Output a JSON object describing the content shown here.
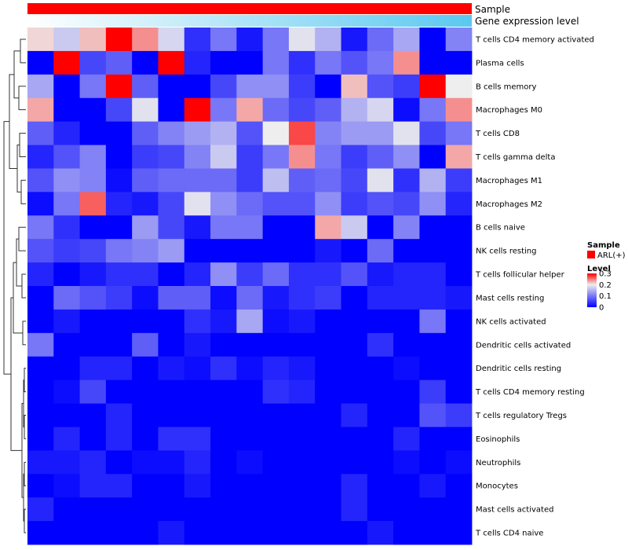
{
  "chart_data": {
    "type": "heatmap",
    "rows": [
      "T cells CD4 memory activated",
      "Plasma cells",
      "B cells memory",
      "Macrophages M0",
      "T cells CD8",
      "T cells gamma delta",
      "Macrophages M1",
      "Macrophages M2",
      "B cells naive",
      "NK cells resting",
      "T cells follicular helper",
      "Mast cells resting",
      "NK cells activated",
      "Dendritic cells activated",
      "Dendritic cells resting",
      "T cells CD4 memory resting",
      "T cells regulatory  Tregs",
      "Eosinophils",
      "Neutrophils",
      "Monocytes",
      "Mast cells activated",
      "T cells CD4 naive"
    ],
    "values": [
      [
        0.21,
        0.17,
        0.22,
        0.3,
        0.24,
        0.18,
        0.04,
        0.1,
        0.02,
        0.1,
        0.19,
        0.15,
        0.02,
        0.09,
        0.14,
        0.0,
        0.11
      ],
      [
        0.0,
        0.3,
        0.06,
        0.08,
        0.0,
        0.3,
        0.03,
        0.0,
        0.0,
        0.1,
        0.04,
        0.1,
        0.07,
        0.1,
        0.24,
        0.0,
        0.0
      ],
      [
        0.14,
        0.0,
        0.1,
        0.3,
        0.08,
        0.0,
        0.0,
        0.06,
        0.12,
        0.12,
        0.05,
        0.0,
        0.22,
        0.07,
        0.05,
        0.3,
        0.2
      ],
      [
        0.23,
        0.0,
        0.0,
        0.06,
        0.19,
        0.0,
        0.3,
        0.1,
        0.23,
        0.09,
        0.06,
        0.08,
        0.15,
        0.18,
        0.01,
        0.1,
        0.24
      ],
      [
        0.08,
        0.03,
        0.0,
        0.0,
        0.08,
        0.11,
        0.13,
        0.15,
        0.07,
        0.2,
        0.27,
        0.11,
        0.13,
        0.13,
        0.19,
        0.06,
        0.1
      ],
      [
        0.03,
        0.07,
        0.11,
        0.0,
        0.05,
        0.06,
        0.11,
        0.17,
        0.05,
        0.1,
        0.24,
        0.1,
        0.05,
        0.08,
        0.12,
        0.0,
        0.23
      ],
      [
        0.07,
        0.12,
        0.11,
        0.01,
        0.08,
        0.09,
        0.09,
        0.09,
        0.05,
        0.16,
        0.08,
        0.09,
        0.06,
        0.19,
        0.04,
        0.15,
        0.05
      ],
      [
        0.01,
        0.1,
        0.26,
        0.03,
        0.02,
        0.06,
        0.19,
        0.12,
        0.09,
        0.07,
        0.07,
        0.12,
        0.05,
        0.07,
        0.06,
        0.12,
        0.03
      ],
      [
        0.1,
        0.04,
        0.0,
        0.0,
        0.13,
        0.06,
        0.02,
        0.1,
        0.1,
        0.0,
        0.0,
        0.23,
        0.17,
        0.0,
        0.11,
        0.0,
        0.0
      ],
      [
        0.07,
        0.05,
        0.06,
        0.1,
        0.11,
        0.13,
        0.0,
        0.0,
        0.0,
        0.0,
        0.0,
        0.02,
        0.0,
        0.09,
        0.0,
        0.0,
        0.0
      ],
      [
        0.03,
        0.0,
        0.02,
        0.04,
        0.04,
        0.0,
        0.03,
        0.12,
        0.05,
        0.09,
        0.04,
        0.04,
        0.07,
        0.02,
        0.03,
        0.03,
        0.0
      ],
      [
        0.0,
        0.09,
        0.07,
        0.05,
        0.01,
        0.08,
        0.08,
        0.01,
        0.09,
        0.02,
        0.04,
        0.05,
        0.0,
        0.03,
        0.03,
        0.03,
        0.02
      ],
      [
        0.0,
        0.02,
        0.0,
        0.0,
        0.0,
        0.0,
        0.04,
        0.02,
        0.14,
        0.01,
        0.02,
        0.0,
        0.0,
        0.0,
        0.0,
        0.1,
        0.0
      ],
      [
        0.1,
        0.0,
        0.0,
        0.0,
        0.08,
        0.0,
        0.02,
        0.0,
        0.0,
        0.0,
        0.0,
        0.0,
        0.0,
        0.04,
        0.0,
        0.0,
        0.0
      ],
      [
        0.0,
        0.0,
        0.03,
        0.03,
        0.0,
        0.02,
        0.01,
        0.04,
        0.01,
        0.03,
        0.02,
        0.0,
        0.0,
        0.0,
        0.01,
        0.0,
        0.0
      ],
      [
        0.0,
        0.01,
        0.06,
        0.0,
        0.0,
        0.0,
        0.0,
        0.0,
        0.0,
        0.04,
        0.03,
        0.0,
        0.0,
        0.0,
        0.0,
        0.05,
        0.0
      ],
      [
        0.0,
        0.0,
        0.0,
        0.03,
        0.0,
        0.0,
        0.0,
        0.0,
        0.0,
        0.0,
        0.0,
        0.0,
        0.03,
        0.0,
        0.0,
        0.07,
        0.05
      ],
      [
        0.0,
        0.03,
        0.0,
        0.03,
        0.0,
        0.04,
        0.04,
        0.0,
        0.0,
        0.0,
        0.0,
        0.0,
        0.0,
        0.0,
        0.03,
        0.0,
        0.0
      ],
      [
        0.02,
        0.02,
        0.03,
        0.0,
        0.01,
        0.01,
        0.03,
        0.0,
        0.01,
        0.0,
        0.0,
        0.0,
        0.0,
        0.0,
        0.01,
        0.0,
        0.01
      ],
      [
        0.0,
        0.01,
        0.03,
        0.03,
        0.0,
        0.0,
        0.02,
        0.0,
        0.0,
        0.0,
        0.0,
        0.0,
        0.03,
        0.0,
        0.0,
        0.02,
        0.0
      ],
      [
        0.03,
        0.0,
        0.0,
        0.0,
        0.0,
        0.0,
        0.0,
        0.0,
        0.0,
        0.0,
        0.0,
        0.0,
        0.03,
        0.0,
        0.0,
        0.0,
        0.0
      ],
      [
        0.0,
        0.0,
        0.0,
        0.0,
        0.0,
        0.02,
        0.0,
        0.0,
        0.0,
        0.0,
        0.0,
        0.0,
        0.0,
        0.02,
        0.0,
        0.0,
        0.0
      ]
    ],
    "color_scale": {
      "range": [
        0,
        0.3
      ],
      "low": "#0000ff",
      "mid": "#eeeeee",
      "mid_value": 0.2,
      "high": "#ff0000",
      "ticks": [
        "0.3",
        "0.2",
        "0.1",
        "0"
      ]
    },
    "annotations": [
      {
        "title": "Sample",
        "color": "#ff0000"
      },
      {
        "title": "Gene expression level",
        "gradient": [
          "#ffffff",
          "#5bc8f0"
        ]
      }
    ],
    "legend": {
      "sample_title": "Sample",
      "sample_entry": "ARL(+)",
      "sample_color": "#ff0000",
      "level_title": "Level",
      "placement": "right"
    },
    "row_dendrogram": true
  }
}
